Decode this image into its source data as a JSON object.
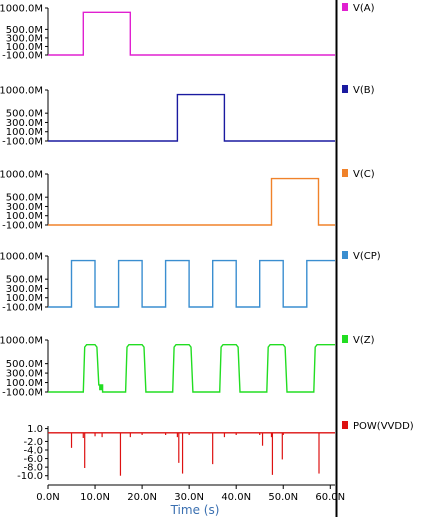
{
  "chart_data": {
    "type": "line",
    "xlabel": "Time (s)",
    "x_ticks": [
      "0.0N",
      "10.0N",
      "20.0N",
      "30.0N",
      "40.0N",
      "50.0N",
      "60.0N"
    ],
    "x_tick_values": [
      0,
      10,
      20,
      30,
      40,
      50,
      60
    ],
    "xlim": [
      0,
      61
    ],
    "grid": false,
    "legend": "right",
    "panels": [
      {
        "name": "V(A)",
        "color": "#e020d0",
        "ylim": [
          -100,
          1000
        ],
        "y_ticks": [
          "1000.0M",
          "500.0M",
          "300.0M",
          "100.0M",
          "-100.0M"
        ],
        "y_tick_values": [
          1000,
          500,
          300,
          100,
          -100
        ],
        "points": [
          [
            0,
            -100
          ],
          [
            7.5,
            -100
          ],
          [
            7.5,
            900
          ],
          [
            17.5,
            900
          ],
          [
            17.5,
            -100
          ],
          [
            61,
            -100
          ]
        ]
      },
      {
        "name": "V(B)",
        "color": "#1a1aa0",
        "ylim": [
          -100,
          1000
        ],
        "y_ticks": [
          "1000.0M",
          "500.0M",
          "300.0M",
          "100.0M",
          "-100.0M"
        ],
        "y_tick_values": [
          1000,
          500,
          300,
          100,
          -100
        ],
        "points": [
          [
            0,
            -100
          ],
          [
            27.5,
            -100
          ],
          [
            27.5,
            900
          ],
          [
            37.5,
            900
          ],
          [
            37.5,
            -100
          ],
          [
            61,
            -100
          ]
        ]
      },
      {
        "name": "V(C)",
        "color": "#f0822a",
        "ylim": [
          -100,
          1000
        ],
        "y_ticks": [
          "1000.0M",
          "500.0M",
          "300.0M",
          "100.0M",
          "-100.0M"
        ],
        "y_tick_values": [
          1000,
          500,
          300,
          100,
          -100
        ],
        "points": [
          [
            0,
            -100
          ],
          [
            47.5,
            -100
          ],
          [
            47.5,
            900
          ],
          [
            57.5,
            900
          ],
          [
            57.5,
            -100
          ],
          [
            61,
            -100
          ]
        ]
      },
      {
        "name": "V(CP)",
        "color": "#3a8ed0",
        "ylim": [
          -100,
          1000
        ],
        "y_ticks": [
          "1000.0M",
          "500.0M",
          "300.0M",
          "100.0M",
          "-100.0M"
        ],
        "y_tick_values": [
          1000,
          500,
          300,
          100,
          -100
        ],
        "points": [
          [
            0,
            -100
          ],
          [
            5,
            -100
          ],
          [
            5,
            900
          ],
          [
            10,
            900
          ],
          [
            10,
            -100
          ],
          [
            15,
            -100
          ],
          [
            15,
            900
          ],
          [
            20,
            900
          ],
          [
            20,
            -100
          ],
          [
            25,
            -100
          ],
          [
            25,
            900
          ],
          [
            30,
            900
          ],
          [
            30,
            -100
          ],
          [
            35,
            -100
          ],
          [
            35,
            900
          ],
          [
            40,
            900
          ],
          [
            40,
            -100
          ],
          [
            45,
            -100
          ],
          [
            45,
            900
          ],
          [
            50,
            900
          ],
          [
            50,
            -100
          ],
          [
            55,
            -100
          ],
          [
            55,
            900
          ],
          [
            61,
            900
          ]
        ]
      },
      {
        "name": "V(Z)",
        "color": "#22dd22",
        "ylim": [
          -100,
          1000
        ],
        "y_ticks": [
          "1000.0M",
          "500.0M",
          "300.0M",
          "100.0M",
          "-100.0M"
        ],
        "y_tick_values": [
          1000,
          500,
          300,
          100,
          -100
        ],
        "points": [
          [
            0,
            -100
          ],
          [
            7.5,
            -100
          ],
          [
            7.8,
            850
          ],
          [
            8.2,
            900
          ],
          [
            10,
            900
          ],
          [
            10.4,
            850
          ],
          [
            10.8,
            50
          ],
          [
            11,
            50
          ],
          [
            11,
            -50
          ],
          [
            11.3,
            -50
          ],
          [
            11.3,
            50
          ],
          [
            11.6,
            50
          ],
          [
            11.6,
            -100
          ],
          [
            16.5,
            -100
          ],
          [
            16.8,
            850
          ],
          [
            17.2,
            900
          ],
          [
            20,
            900
          ],
          [
            20.4,
            850
          ],
          [
            20.8,
            -100
          ],
          [
            26.5,
            -100
          ],
          [
            26.8,
            850
          ],
          [
            27.2,
            900
          ],
          [
            30,
            900
          ],
          [
            30.4,
            850
          ],
          [
            30.8,
            -100
          ],
          [
            36.5,
            -100
          ],
          [
            36.8,
            850
          ],
          [
            37.2,
            900
          ],
          [
            40,
            900
          ],
          [
            40.4,
            850
          ],
          [
            40.8,
            -100
          ],
          [
            46.5,
            -100
          ],
          [
            46.8,
            850
          ],
          [
            47.2,
            900
          ],
          [
            50,
            900
          ],
          [
            50.4,
            850
          ],
          [
            50.8,
            -100
          ],
          [
            56.5,
            -100
          ],
          [
            56.8,
            850
          ],
          [
            57.2,
            900
          ],
          [
            61,
            900
          ]
        ]
      },
      {
        "name": "POW(VVDD)",
        "color": "#dd1111",
        "ylim": [
          -11,
          1.6
        ],
        "y_ticks": [
          "1.0",
          "-2.0",
          "-4.0",
          "-6.0",
          "-8.0",
          "-10.0"
        ],
        "y_tick_values": [
          1,
          -2,
          -4,
          -6,
          -8,
          -10
        ],
        "baseline": 0,
        "spikes": [
          [
            5,
            -3.5
          ],
          [
            7.5,
            -1.2
          ],
          [
            7.8,
            -8.2
          ],
          [
            10,
            -0.8
          ],
          [
            11.5,
            -1.0
          ],
          [
            15.4,
            -10.0
          ],
          [
            17.5,
            -1.0
          ],
          [
            20,
            -0.5
          ],
          [
            25,
            -0.5
          ],
          [
            27.5,
            -1.0
          ],
          [
            27.8,
            -7.0
          ],
          [
            28.6,
            -9.5
          ],
          [
            30,
            -0.5
          ],
          [
            35,
            -7.3
          ],
          [
            37.5,
            -1.0
          ],
          [
            40,
            -0.5
          ],
          [
            45,
            -0.5
          ],
          [
            45.6,
            -3.0
          ],
          [
            47.5,
            -1.0
          ],
          [
            47.7,
            -9.8
          ],
          [
            49.8,
            -6.2
          ],
          [
            50,
            -0.5
          ],
          [
            57.6,
            -9.5
          ]
        ]
      }
    ]
  }
}
